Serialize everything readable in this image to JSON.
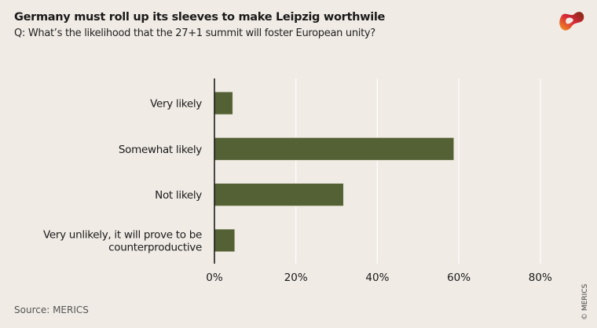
{
  "header": {
    "title": "Germany must roll up its sleeves to make Leipzig worthwile",
    "subtitle": "Q: What’s the likelihood that the 27+1 summit will foster European unity?"
  },
  "footer": {
    "source": "Source: MERICS",
    "copyright": "© MERICS"
  },
  "colors": {
    "bar": "#536135",
    "background": "#f0ebe5",
    "grid": "#ffffff"
  },
  "chart_data": {
    "type": "bar",
    "orientation": "horizontal",
    "categories": [
      [
        "Very likely"
      ],
      [
        "Somewhat likely"
      ],
      [
        "Not likely"
      ],
      [
        "Very unlikely, it will prove to be",
        "counterproductive"
      ]
    ],
    "values": [
      4.5,
      58.8,
      31.7,
      5.0
    ],
    "xlim": [
      0,
      80
    ],
    "ticks": [
      0,
      20,
      40,
      60,
      80
    ],
    "tick_labels": [
      "0%",
      "20%",
      "40%",
      "60%",
      "80%"
    ],
    "grid": true,
    "title": "Germany must roll up its sleeves to make Leipzig worthwile",
    "xlabel": "",
    "ylabel": ""
  }
}
